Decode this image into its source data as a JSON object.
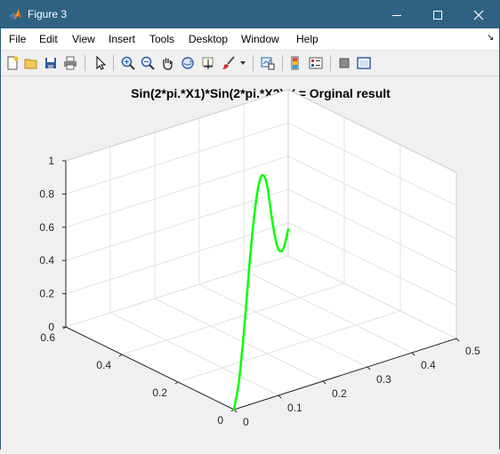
{
  "window": {
    "title": "Figure 3"
  },
  "menu": {
    "file": "File",
    "edit": "Edit",
    "view": "View",
    "insert": "Insert",
    "tools": "Tools",
    "desktop": "Desktop",
    "window": "Window",
    "help": "Help",
    "overflow": "↘"
  },
  "plot": {
    "title": "Sin(2*pi.*X1)*Sin(2*pi.*X2) Y = Orginal result",
    "line_color": "#00ff00",
    "x_ticks": [
      "0",
      "0.1",
      "0.2",
      "0.3",
      "0.4",
      "0.5"
    ],
    "y_ticks": [
      "0",
      "0.2",
      "0.4",
      "0.6"
    ],
    "z_ticks": [
      "0",
      "0.2",
      "0.4",
      "0.6",
      "0.8",
      "1"
    ]
  },
  "chart_data": {
    "type": "line",
    "title": "Sin(2*pi.*X1)*Sin(2*pi.*X2) Y = Orginal result",
    "xlim": [
      0,
      0.5
    ],
    "ylim": [
      0,
      0.6
    ],
    "zlim": [
      0,
      1
    ],
    "series": [
      {
        "name": "Y",
        "x": [
          0,
          0.05,
          0.1,
          0.15,
          0.2,
          0.25,
          0.3,
          0.35,
          0.4,
          0.45,
          0.5
        ],
        "y": [
          0,
          0.06,
          0.12,
          0.18,
          0.24,
          0.3,
          0.36,
          0.42,
          0.48,
          0.54,
          0.6
        ],
        "z": [
          0,
          0.1,
          0.35,
          0.65,
          0.87,
          0.94,
          0.81,
          0.5,
          0.24,
          0.13,
          0.16
        ]
      }
    ]
  }
}
